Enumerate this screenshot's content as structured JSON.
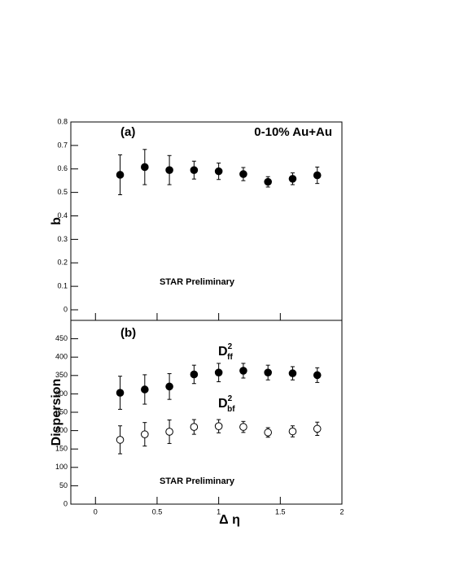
{
  "chart_data": [
    {
      "type": "scatter",
      "title": "(a)",
      "subtitle": "0-10% Au+Au",
      "annotation": "STAR Preliminary",
      "ylabel": "b",
      "xlim": [
        -0.2,
        2.0
      ],
      "xticks": [
        0,
        0.5,
        1,
        1.5,
        2
      ],
      "ylim": [
        -0.045,
        0.8
      ],
      "yticks": [
        0,
        0.1,
        0.2,
        0.3,
        0.4,
        0.5,
        0.6,
        0.7,
        0.8
      ],
      "series": [
        {
          "color": "#000000",
          "filled": true,
          "x": [
            0.2,
            0.4,
            0.6,
            0.8,
            1.0,
            1.2,
            1.4,
            1.6,
            1.8
          ],
          "values": [
            0.575,
            0.608,
            0.595,
            0.595,
            0.59,
            0.578,
            0.545,
            0.558,
            0.573
          ],
          "errors": [
            0.085,
            0.075,
            0.062,
            0.038,
            0.035,
            0.028,
            0.022,
            0.025,
            0.035
          ]
        }
      ]
    },
    {
      "type": "scatter",
      "title": "(b)",
      "annotation": "STAR Preliminary",
      "ylabel": "Dispersion",
      "xlabel": "Δ η",
      "xlim": [
        -0.2,
        2.0
      ],
      "xticks": [
        0,
        0.5,
        1,
        1.5,
        2
      ],
      "ylim": [
        0,
        500
      ],
      "yticks": [
        0,
        50,
        100,
        150,
        200,
        250,
        300,
        350,
        400,
        450
      ],
      "series": [
        {
          "label": {
            "base": "D",
            "sup": "2",
            "sub": "ff"
          },
          "color": "#000000",
          "filled": true,
          "x": [
            0.2,
            0.4,
            0.6,
            0.8,
            1.0,
            1.2,
            1.4,
            1.6,
            1.8
          ],
          "values": [
            303,
            312,
            320,
            353,
            358,
            363,
            358,
            356,
            351
          ],
          "errors": [
            45,
            40,
            35,
            25,
            25,
            20,
            20,
            18,
            20
          ]
        },
        {
          "label": {
            "base": "D",
            "sup": "2",
            "sub": "bf"
          },
          "color": "#000000",
          "filled": false,
          "x": [
            0.2,
            0.4,
            0.6,
            0.8,
            1.0,
            1.2,
            1.4,
            1.6,
            1.8
          ],
          "values": [
            175,
            190,
            197,
            210,
            212,
            210,
            195,
            198,
            205
          ],
          "errors": [
            38,
            32,
            32,
            20,
            18,
            15,
            13,
            15,
            18
          ]
        }
      ]
    }
  ]
}
